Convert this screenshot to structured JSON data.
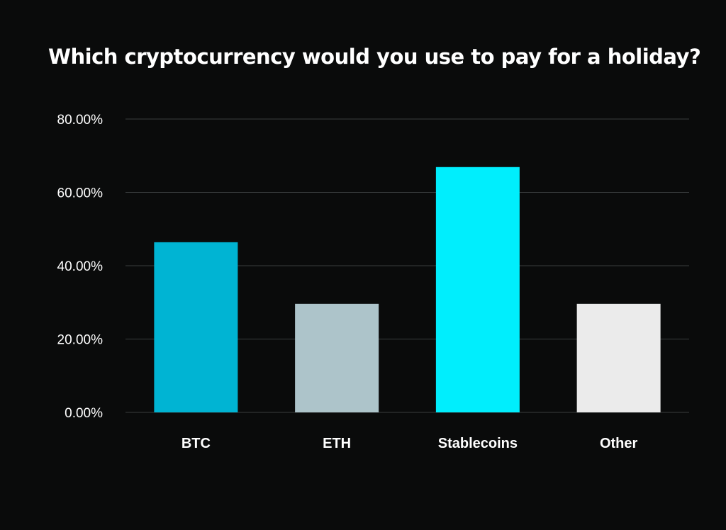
{
  "chart_data": {
    "type": "bar",
    "title": "Which cryptocurrency would you use to pay for a holiday?",
    "categories": [
      "BTC",
      "ETH",
      "Stablecoins",
      "Other"
    ],
    "values": [
      46.4,
      29.6,
      66.9,
      29.6
    ],
    "unit": "%",
    "ylim": [
      0,
      80
    ],
    "yticks": [
      "0.00%",
      "20.00%",
      "40.00%",
      "60.00%",
      "80.00%"
    ],
    "ytick_values": [
      0,
      20,
      40,
      60,
      80
    ],
    "grid": true,
    "legend": "none",
    "bar_colors": [
      "#00b4d3",
      "#adc4ca",
      "#00eefd",
      "#ebebeb"
    ],
    "grid_color": "#3a3d3e",
    "background": "#0a0b0b"
  }
}
